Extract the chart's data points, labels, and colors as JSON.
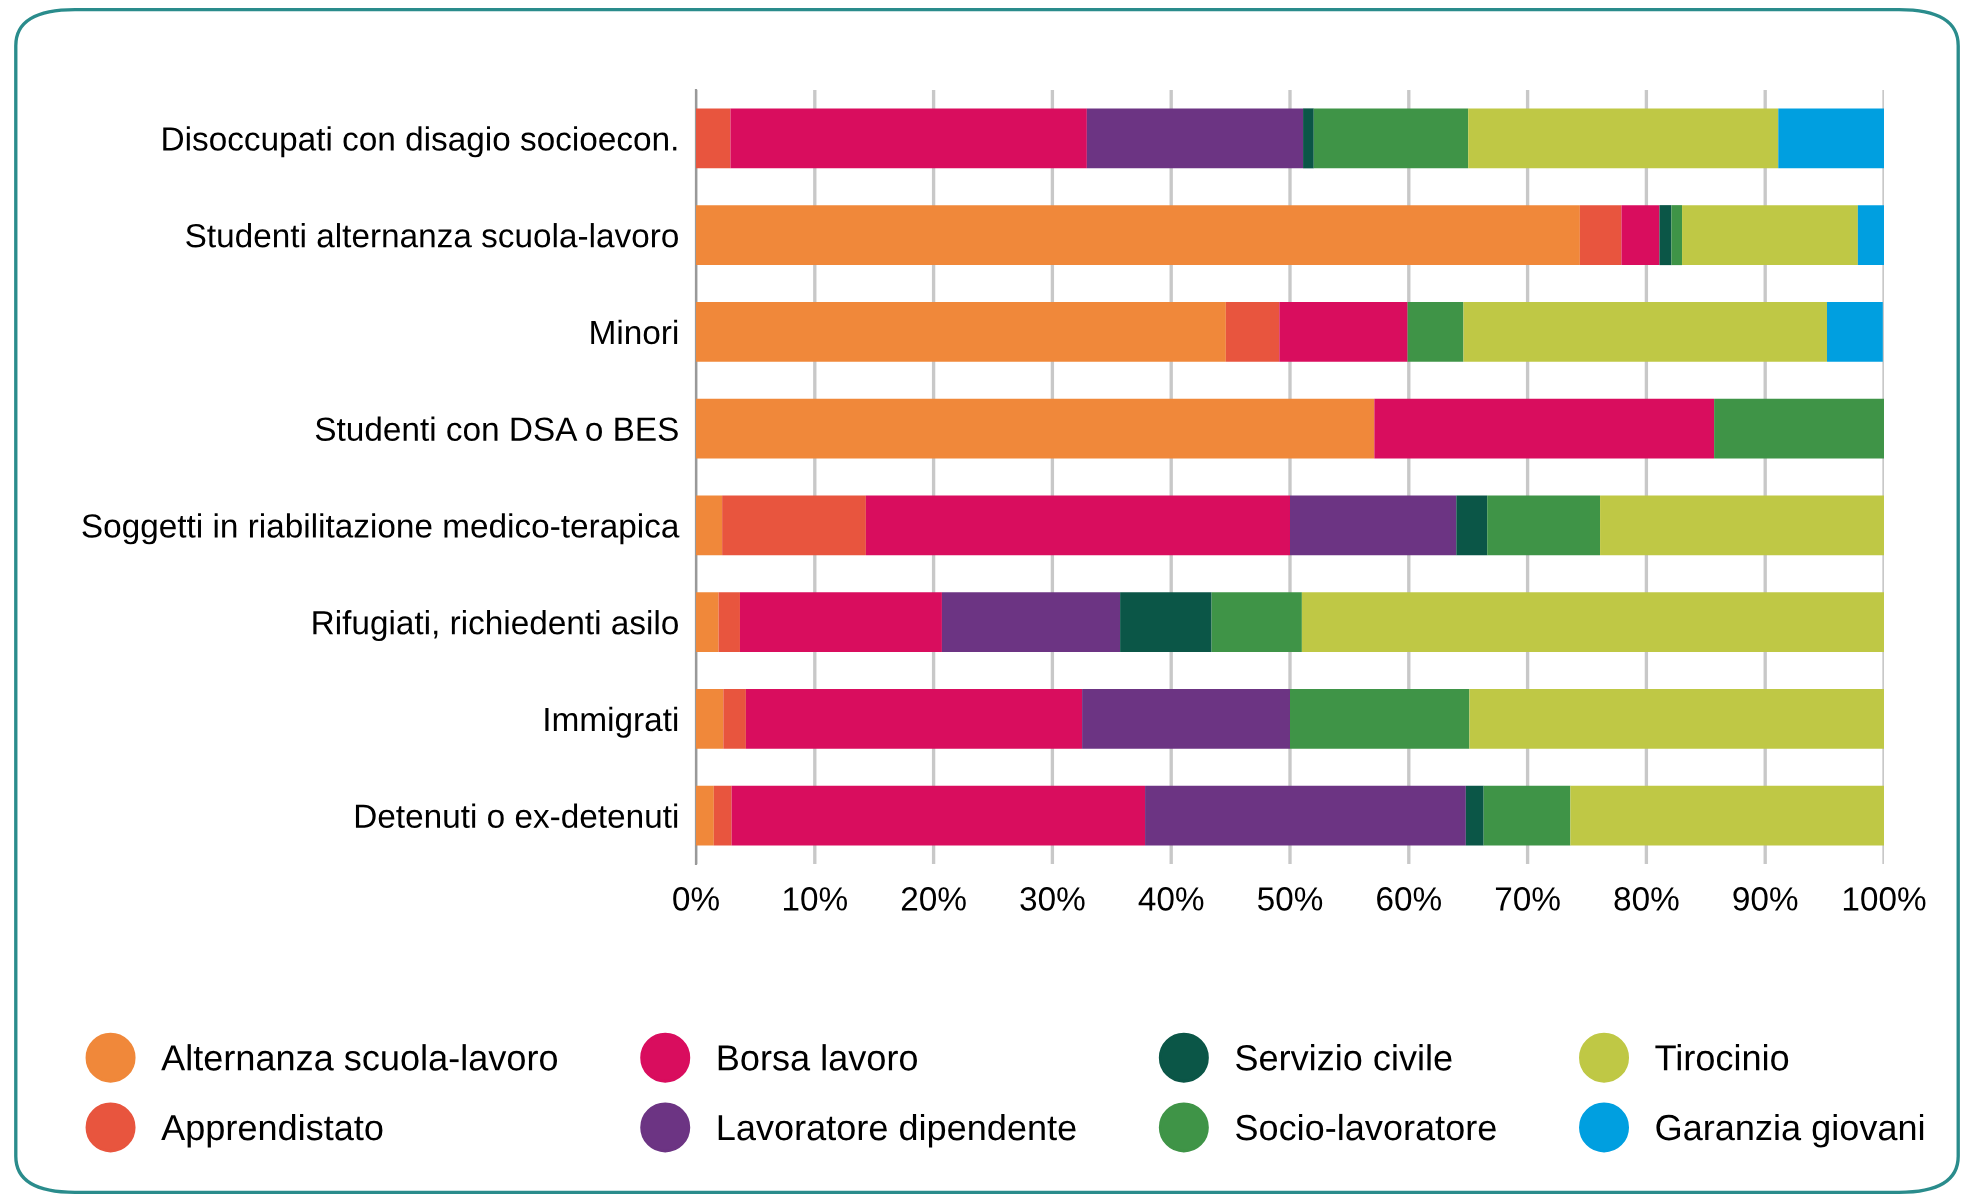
{
  "chart_data": {
    "type": "bar",
    "orientation": "horizontal",
    "stacked": true,
    "categories": [
      "Disoccupati con disagio socioecon.",
      "Studenti alternanza scuola-lavoro",
      "Minori",
      "Studenti con DSA o BES",
      "Soggetti in riabilitazione medico-terapica",
      "Rifugiati, richiedenti asilo",
      "Immigrati",
      "Detenuti o ex-detenuti"
    ],
    "series": [
      {
        "name": "Alternanza scuola-lavoro",
        "color": "#f0883a",
        "values": [
          0,
          74.4,
          44.6,
          57.1,
          2.2,
          1.9,
          2.3,
          1.5
        ]
      },
      {
        "name": "Apprendistato",
        "color": "#e8553e",
        "values": [
          2.9,
          3.5,
          4.5,
          0,
          12.1,
          1.8,
          1.9,
          1.5
        ]
      },
      {
        "name": "Borsa lavoro",
        "color": "#d90d5e",
        "values": [
          30.0,
          3.2,
          10.8,
          28.6,
          35.7,
          17.0,
          28.3,
          34.8
        ]
      },
      {
        "name": "Lavoratore dipendente",
        "color": "#6c3483",
        "values": [
          18.2,
          0,
          0,
          0,
          14.0,
          15.0,
          17.5,
          27.0
        ]
      },
      {
        "name": "Servizio civile",
        "color": "#0b5647",
        "values": [
          0.9,
          1.0,
          0,
          0,
          2.6,
          7.7,
          0,
          1.5
        ]
      },
      {
        "name": "Socio-lavoratore",
        "color": "#3f9447",
        "values": [
          13.0,
          0.9,
          4.7,
          14.3,
          9.5,
          7.6,
          15.1,
          7.3
        ]
      },
      {
        "name": "Tirocinio",
        "color": "#bfc845",
        "values": [
          26.1,
          14.8,
          30.6,
          0,
          23.9,
          49.0,
          34.9,
          26.4
        ]
      },
      {
        "name": "Garanzia giovani",
        "color": "#009fe0",
        "values": [
          8.9,
          2.3,
          4.7,
          0,
          0,
          0,
          0,
          0
        ]
      }
    ],
    "xlim": [
      0,
      100
    ],
    "xticks": [
      {
        "value": 0,
        "label": "0%"
      },
      {
        "value": 10,
        "label": "10%"
      },
      {
        "value": 20,
        "label": "20%"
      },
      {
        "value": 30,
        "label": "30%"
      },
      {
        "value": 40,
        "label": "40%"
      },
      {
        "value": 50,
        "label": "50%"
      },
      {
        "value": 60,
        "label": "60%"
      },
      {
        "value": 70,
        "label": "70%"
      },
      {
        "value": 80,
        "label": "80%"
      },
      {
        "value": 90,
        "label": "90%"
      },
      {
        "value": 100,
        "label": "100%"
      }
    ],
    "grid": "x",
    "legend": "bottom",
    "marker": "circle"
  }
}
